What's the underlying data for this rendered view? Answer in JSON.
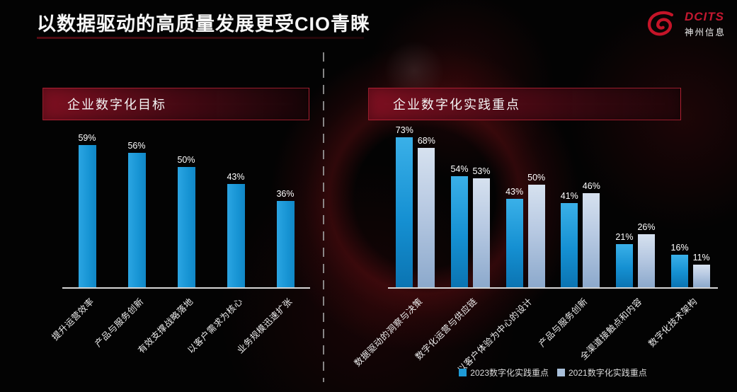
{
  "page": {
    "title": "以数据驱动的高质量发展更受CIO青睐",
    "background_color": "#030303",
    "accent_red": "#8e1422"
  },
  "logo": {
    "brand": "DCITS",
    "subtitle": "神州信息",
    "color": "#c41830"
  },
  "left_panel": {
    "header": "企业数字化目标"
  },
  "right_panel": {
    "header": "企业数字化实践重点",
    "legend": [
      {
        "label": "2023数字化实践重点",
        "color": "#1f9bd7"
      },
      {
        "label": "2021数字化实践重点",
        "color": "#a9c0da"
      }
    ]
  },
  "chart_data": [
    {
      "type": "bar",
      "title": "企业数字化目标",
      "categories": [
        "提升运营效率",
        "产品与服务创新",
        "有效支撑战略落地",
        "以客户需求为核心",
        "业务规模迅速扩张"
      ],
      "values": [
        59,
        56,
        50,
        43,
        36
      ],
      "data_labels": [
        "59%",
        "56%",
        "50%",
        "43%",
        "36%"
      ],
      "unit": "%",
      "bar_color": "#1b9ad8",
      "ylim": [
        0,
        100
      ],
      "grid": false,
      "legend_position": "none",
      "category_label_rotation": 45
    },
    {
      "type": "bar",
      "title": "企业数字化实践重点",
      "categories": [
        "数据驱动的洞察与决策",
        "数字化运营与供应链",
        "以客户体验为中心的设计",
        "产品与服务创新",
        "全渠道接触点和内容",
        "数字化技术架构"
      ],
      "series": [
        {
          "name": "2023数字化实践重点",
          "color": "#1b9ad8",
          "values": [
            73,
            54,
            43,
            41,
            21,
            16
          ]
        },
        {
          "name": "2021数字化实践重点",
          "color": "#a9c0da",
          "values": [
            68,
            53,
            50,
            46,
            26,
            11
          ]
        }
      ],
      "unit": "%",
      "ylim": [
        0,
        100
      ],
      "grid": false,
      "legend_position": "bottom",
      "category_label_rotation": 45
    }
  ]
}
